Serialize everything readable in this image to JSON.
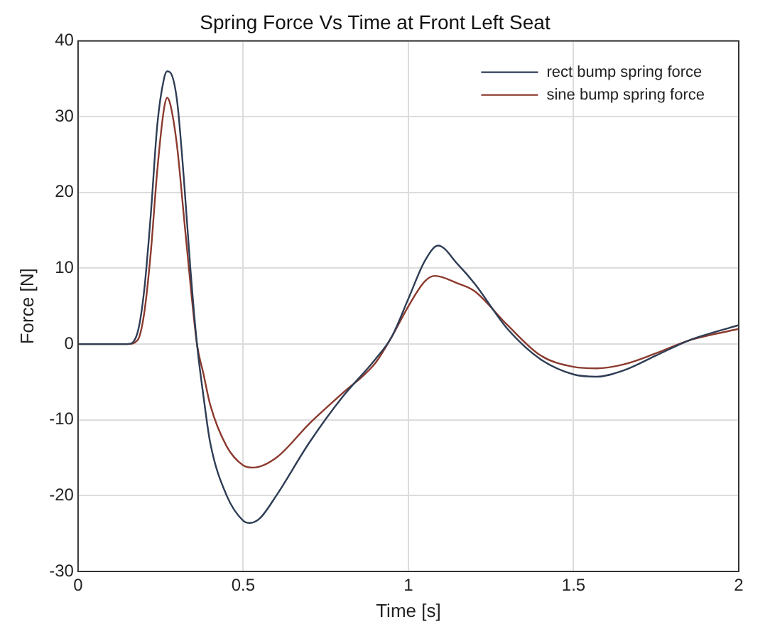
{
  "chart_data": {
    "type": "line",
    "title": "Spring Force Vs Time at Front Left Seat",
    "xlabel": "Time [s]",
    "ylabel": "Force [N]",
    "series": [
      {
        "name": "rect bump spring force",
        "color": "#2e3d55",
        "x": [
          0,
          0.15,
          0.18,
          0.2,
          0.22,
          0.24,
          0.26,
          0.27,
          0.28,
          0.3,
          0.32,
          0.34,
          0.36,
          0.38,
          0.4,
          0.45,
          0.5,
          0.52,
          0.55,
          0.6,
          0.7,
          0.8,
          0.9,
          0.95,
          1.0,
          1.05,
          1.09,
          1.15,
          1.2,
          1.3,
          1.4,
          1.5,
          1.57,
          1.65,
          1.75,
          1.85,
          2.0
        ],
        "values": [
          0,
          0,
          1.5,
          7,
          17,
          29,
          35,
          36,
          35.8,
          32,
          22,
          10,
          0,
          -7,
          -13,
          -20,
          -23.3,
          -23.6,
          -23,
          -20,
          -13,
          -7,
          -2,
          1,
          6,
          11,
          13,
          10.5,
          8,
          2,
          -2,
          -4,
          -4.3,
          -3.5,
          -1.5,
          0.5,
          2.5
        ]
      },
      {
        "name": "sine bump spring force",
        "color": "#8b3a2e",
        "x": [
          0,
          0.15,
          0.18,
          0.2,
          0.22,
          0.24,
          0.26,
          0.27,
          0.28,
          0.3,
          0.32,
          0.34,
          0.36,
          0.38,
          0.4,
          0.45,
          0.5,
          0.53,
          0.6,
          0.7,
          0.8,
          0.9,
          0.95,
          1.0,
          1.05,
          1.08,
          1.15,
          1.2,
          1.3,
          1.4,
          1.5,
          1.57,
          1.65,
          1.75,
          1.85,
          2.0
        ],
        "values": [
          0,
          0,
          0.5,
          4,
          12,
          23,
          31,
          32.5,
          31.5,
          26,
          17,
          8,
          0,
          -4,
          -8,
          -13.5,
          -16,
          -16.3,
          -15,
          -10.5,
          -6.5,
          -2.5,
          1,
          5,
          8.3,
          9,
          8,
          7,
          2.5,
          -1.5,
          -3,
          -3.2,
          -2.7,
          -1.2,
          0.5,
          2
        ]
      }
    ],
    "xlim": [
      0,
      2
    ],
    "xticks": [
      0,
      0.5,
      1,
      1.5,
      2
    ],
    "ylim": [
      -30,
      40
    ],
    "yticks": [
      -30,
      -20,
      -10,
      0,
      10,
      20,
      30,
      40
    ],
    "grid": true,
    "legend": "top right",
    "marker": "none",
    "line_style": "solid"
  }
}
